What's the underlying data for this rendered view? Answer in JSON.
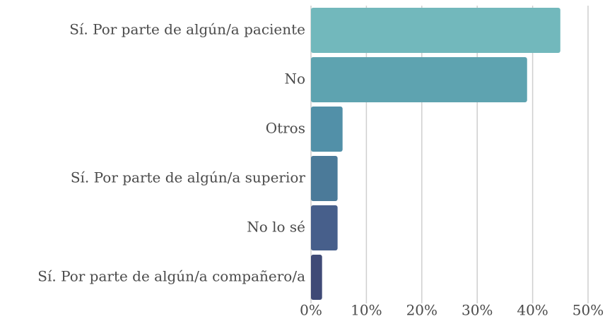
{
  "chart_data": {
    "type": "bar",
    "orientation": "horizontal",
    "categories": [
      "Sí. Por parte de algún/a paciente",
      "No",
      "Otros",
      "Sí. Por parte de algún/a superior",
      "No lo sé",
      "Sí. Por parte de algún/a compañero/a"
    ],
    "values": [
      45,
      39,
      5.7,
      4.8,
      4.8,
      2
    ],
    "colors": [
      "#72b8bc",
      "#5ea3b0",
      "#5290a8",
      "#4b7a99",
      "#475f8b",
      "#3f4a76"
    ],
    "xlim": [
      0,
      50
    ],
    "xticks": [
      {
        "value": 0,
        "label": "0%"
      },
      {
        "value": 10,
        "label": "10%"
      },
      {
        "value": 20,
        "label": "20%"
      },
      {
        "value": 30,
        "label": "30%"
      },
      {
        "value": 40,
        "label": "40%"
      },
      {
        "value": 50,
        "label": "50%"
      }
    ],
    "grid": true
  }
}
